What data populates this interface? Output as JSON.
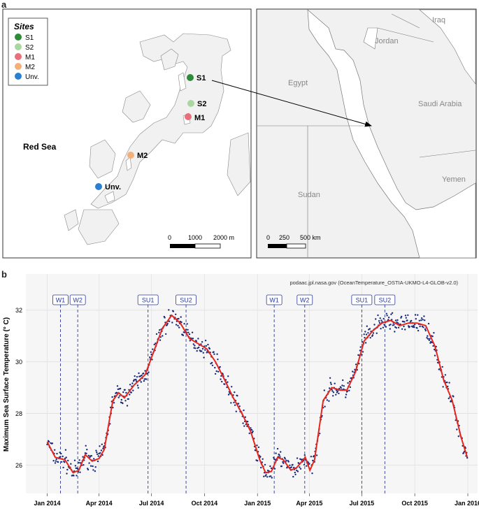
{
  "panel_a": {
    "letter": "a",
    "legend": {
      "title": "Sites",
      "items": [
        {
          "label": "S1",
          "color": "#2e8b3a"
        },
        {
          "label": "S2",
          "color": "#a8d8a0"
        },
        {
          "label": "M1",
          "color": "#e8707a"
        },
        {
          "label": "M2",
          "color": "#f2b07a"
        },
        {
          "label": "Unv.",
          "color": "#2b7fd0"
        }
      ]
    },
    "local_map": {
      "sea_label": "Red Sea",
      "site_labels": [
        "S1",
        "S2",
        "M1",
        "M2",
        "Unv."
      ],
      "scale": {
        "ticks": [
          "0",
          "1000",
          "2000 m"
        ]
      }
    },
    "regional_map": {
      "country_labels": [
        "Iraq",
        "Jordan",
        "Egypt",
        "Saudi Arabia",
        "Yemen",
        "Sudan"
      ],
      "scale": {
        "ticks": [
          "0",
          "250",
          "500 km"
        ]
      }
    }
  },
  "panel_b": {
    "letter": "b",
    "source": "podaac.jpl.nasa.gov (OceanTemperature_OSTIA-UKMO-L4-GLOB-v2.0)"
  },
  "chart_data": {
    "type": "scatter",
    "title": "",
    "ylabel": "Maximum Sea Surface Temperature (° C)",
    "xlabel": "",
    "x_tick_labels": [
      "Jan 2014",
      "Apr 2014",
      "Jul 2014",
      "Oct 2014",
      "Jan 2015",
      "Apr 2015",
      "Jul 2015",
      "Oct 2015",
      "Jan 2016"
    ],
    "x_tick_dates": [
      "2014-01-01",
      "2014-04-01",
      "2014-07-01",
      "2014-10-01",
      "2015-01-01",
      "2015-04-01",
      "2015-07-01",
      "2015-10-01",
      "2016-01-01"
    ],
    "y_tick_labels": [
      "26",
      "28",
      "30",
      "32"
    ],
    "xlim": [
      "2013-11-25",
      "2016-01-18"
    ],
    "ylim": [
      24.9,
      33.4
    ],
    "grid": true,
    "markers": [
      {
        "label": "W1",
        "date": "2014-01-24"
      },
      {
        "label": "W2",
        "date": "2014-02-23"
      },
      {
        "label": "SU1",
        "date": "2014-06-25"
      },
      {
        "label": "SU2",
        "date": "2014-08-30"
      },
      {
        "label": "W1",
        "date": "2015-01-30"
      },
      {
        "label": "W2",
        "date": "2015-03-24"
      },
      {
        "label": "SU1",
        "date": "2015-07-01"
      },
      {
        "label": "SU2",
        "date": "2015-08-10"
      }
    ],
    "series": [
      {
        "kind": "smooth",
        "color": "#e8261c",
        "points": [
          [
            "2014-01-01",
            26.9
          ],
          [
            "2014-01-15",
            26.3
          ],
          [
            "2014-02-01",
            26.2
          ],
          [
            "2014-02-15",
            25.7
          ],
          [
            "2014-02-25",
            25.8
          ],
          [
            "2014-03-08",
            26.4
          ],
          [
            "2014-03-20",
            26.15
          ],
          [
            "2014-04-01",
            26.25
          ],
          [
            "2014-04-10",
            26.6
          ],
          [
            "2014-04-25",
            28.5
          ],
          [
            "2014-05-05",
            28.8
          ],
          [
            "2014-05-15",
            28.6
          ],
          [
            "2014-06-01",
            29.1
          ],
          [
            "2014-06-20",
            29.5
          ],
          [
            "2014-07-05",
            30.4
          ],
          [
            "2014-07-20",
            31.3
          ],
          [
            "2014-08-05",
            31.8
          ],
          [
            "2014-08-20",
            31.5
          ],
          [
            "2014-09-05",
            30.9
          ],
          [
            "2014-09-20",
            30.7
          ],
          [
            "2014-10-05",
            30.5
          ],
          [
            "2014-10-20",
            30.0
          ],
          [
            "2014-11-05",
            29.3
          ],
          [
            "2014-11-20",
            28.6
          ],
          [
            "2014-12-05",
            28.0
          ],
          [
            "2014-12-20",
            27.3
          ],
          [
            "2015-01-05",
            26.2
          ],
          [
            "2015-01-15",
            25.7
          ],
          [
            "2015-01-25",
            25.75
          ],
          [
            "2015-02-05",
            26.3
          ],
          [
            "2015-02-15",
            26.2
          ],
          [
            "2015-02-28",
            25.8
          ],
          [
            "2015-03-10",
            25.9
          ],
          [
            "2015-03-25",
            26.3
          ],
          [
            "2015-04-02",
            25.8
          ],
          [
            "2015-04-10",
            26.2
          ],
          [
            "2015-04-25",
            28.5
          ],
          [
            "2015-05-10",
            29.0
          ],
          [
            "2015-05-25",
            28.9
          ],
          [
            "2015-06-05",
            28.9
          ],
          [
            "2015-06-20",
            29.6
          ],
          [
            "2015-07-05",
            30.8
          ],
          [
            "2015-07-20",
            31.2
          ],
          [
            "2015-08-05",
            31.5
          ],
          [
            "2015-08-20",
            31.6
          ],
          [
            "2015-09-05",
            31.4
          ],
          [
            "2015-09-20",
            31.5
          ],
          [
            "2015-10-05",
            31.5
          ],
          [
            "2015-10-20",
            31.4
          ],
          [
            "2015-11-05",
            30.6
          ],
          [
            "2015-11-20",
            29.3
          ],
          [
            "2015-12-05",
            28.5
          ],
          [
            "2015-12-20",
            27.1
          ],
          [
            "2015-12-31",
            26.3
          ]
        ]
      },
      {
        "kind": "points",
        "color": "#1a2a7a",
        "noise": 0.28
      }
    ]
  }
}
